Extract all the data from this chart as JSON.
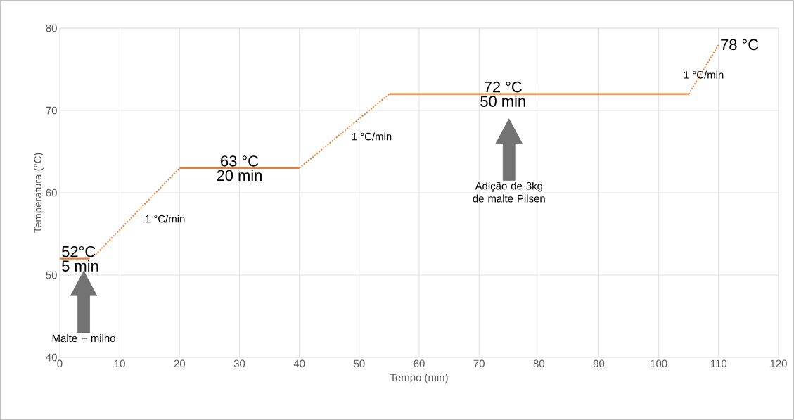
{
  "chart_data": {
    "type": "line",
    "xlabel": "Tempo (min)",
    "ylabel": "Temperatura (°C)",
    "xlim": [
      0,
      120
    ],
    "ylim": [
      40,
      80
    ],
    "xticks": [
      0,
      10,
      20,
      30,
      40,
      50,
      60,
      70,
      80,
      90,
      100,
      110,
      120
    ],
    "yticks": [
      40,
      50,
      60,
      70,
      80
    ],
    "grid": true,
    "marker": "none",
    "series": [
      {
        "x": [
          0,
          5
        ],
        "values": [
          52,
          52
        ],
        "color": "#ed7d31",
        "line_style": "solid"
      },
      {
        "x": [
          6,
          20
        ],
        "values": [
          52.5,
          63
        ],
        "color": "#ed7d31",
        "line_style": "dotted"
      },
      {
        "x": [
          20,
          40
        ],
        "values": [
          63,
          63
        ],
        "color": "#ed7d31",
        "line_style": "solid"
      },
      {
        "x": [
          40,
          55
        ],
        "values": [
          63,
          72
        ],
        "color": "#ed7d31",
        "line_style": "dotted"
      },
      {
        "x": [
          55,
          105
        ],
        "values": [
          72,
          72
        ],
        "color": "#ed7d31",
        "line_style": "solid"
      },
      {
        "x": [
          105,
          110
        ],
        "values": [
          72,
          78
        ],
        "color": "#ed7d31",
        "line_style": "dotted"
      }
    ],
    "annotations": [
      {
        "text": "52°C",
        "x": 0,
        "y": 52
      },
      {
        "text": "5 min",
        "x": 0,
        "y": 52
      },
      {
        "text": "63 °C",
        "x": 30,
        "y": 63
      },
      {
        "text": "20 min",
        "x": 30,
        "y": 63
      },
      {
        "text": "72 °C",
        "x": 74,
        "y": 72
      },
      {
        "text": "50 min",
        "x": 74,
        "y": 72
      },
      {
        "text": "78 °C",
        "x": 110,
        "y": 78
      },
      {
        "text": "1 °C/min",
        "x": 13,
        "y": 57.5
      },
      {
        "text": "1 °C/min",
        "x": 47.5,
        "y": 67.5
      },
      {
        "text": "1 °C/min",
        "x": 107.5,
        "y": 75
      },
      "Malte + milho",
      "Adição de 3kg de malte Pilsen"
    ]
  }
}
